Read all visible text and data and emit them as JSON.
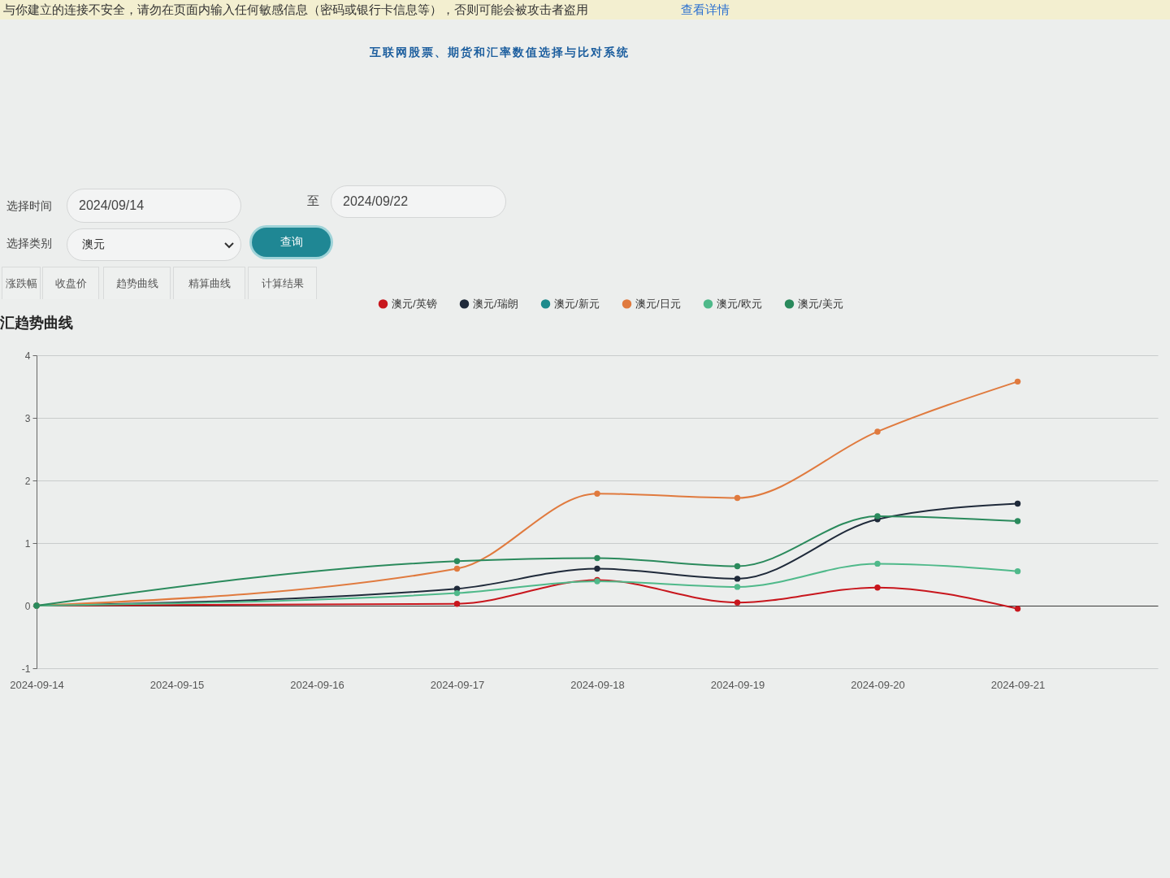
{
  "chart_data": {
    "type": "line",
    "title": "汇趋势曲线",
    "annotations": [
      "与你建立的连接不安全，请勿在页面内输入任何敏感信息（密码或银行卡信息等），否则可能会被攻击者盗用",
      "查看详情",
      "互联网股票、期货和汇率数值选择与比对系统",
      "选择时间",
      "2024/09/14",
      "至",
      "2024/09/22",
      "选择类别",
      "澳元",
      "查询",
      "涨跌幅",
      "收盘价",
      "趋势曲线",
      "精算曲线",
      "计算结果"
    ],
    "x": [
      "2024-09-14",
      "2024-09-17",
      "2024-09-18",
      "2024-09-19",
      "2024-09-20",
      "2024-09-21"
    ],
    "xlim": [
      "2024-09-14",
      "2024-09-22"
    ],
    "xticks": [
      "2024-09-14",
      "2024-09-15",
      "2024-09-16",
      "2024-09-17",
      "2024-09-18",
      "2024-09-19",
      "2024-09-20",
      "2024-09-21"
    ],
    "ylim": [
      -1,
      4
    ],
    "yticks": [
      -1,
      0,
      1,
      2,
      3,
      4
    ],
    "series": [
      {
        "name": "澳元/英镑",
        "color": "#c8161d",
        "values": [
          0,
          0.03,
          0.41,
          0.05,
          0.29,
          -0.05
        ]
      },
      {
        "name": "澳元/瑞朗",
        "color": "#1f2a3a",
        "values": [
          0,
          0.27,
          0.59,
          0.43,
          1.38,
          1.63
        ]
      },
      {
        "name": "澳元/新元",
        "color": "#1d8a8c",
        "values": [
          null,
          null,
          null,
          null,
          null,
          null
        ]
      },
      {
        "name": "澳元/日元",
        "color": "#e07a3e",
        "values": [
          0,
          0.59,
          1.79,
          1.72,
          2.78,
          3.58
        ]
      },
      {
        "name": "澳元/欧元",
        "color": "#4fb98a",
        "values": [
          0,
          0.2,
          0.39,
          0.3,
          0.67,
          0.55
        ]
      },
      {
        "name": "澳元/美元",
        "color": "#2a8a5c",
        "values": [
          0,
          0.71,
          0.76,
          0.63,
          1.43,
          1.35
        ]
      }
    ],
    "grid": "y",
    "legend": "top",
    "marker": "circle"
  }
}
